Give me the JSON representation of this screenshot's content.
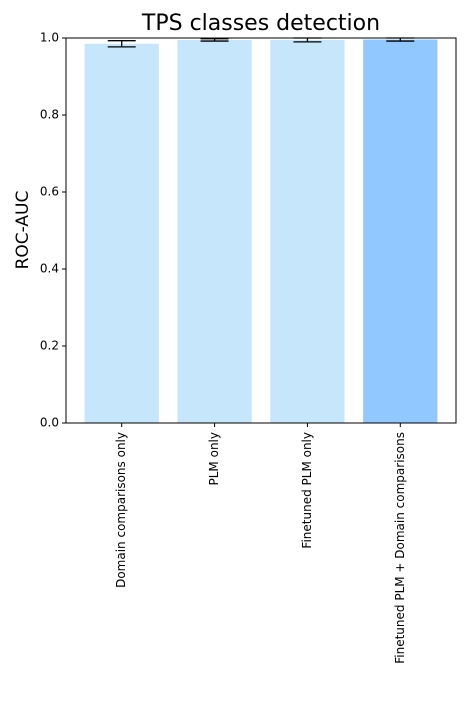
{
  "chart_data": {
    "type": "bar",
    "title": "TPS classes detection",
    "y_label": "ROC-AUC",
    "categories": [
      "Domain comparisons only",
      "PLM only",
      "Finetuned PLM only",
      "Finetuned PLM + Domain comparisons"
    ],
    "values": [
      0.985,
      0.995,
      0.995,
      0.996
    ],
    "errors": [
      0.008,
      0.003,
      0.005,
      0.004
    ],
    "colors": [
      "#c6e6fb",
      "#c6e6fb",
      "#c6e6fb",
      "#90c8ff"
    ],
    "ylim": [
      0,
      1
    ],
    "yticks": [
      {
        "value": 0,
        "label": "0.0"
      },
      0.2,
      0.4,
      0.6,
      0.8,
      {
        "value": 1,
        "label": "1.0"
      }
    ]
  }
}
